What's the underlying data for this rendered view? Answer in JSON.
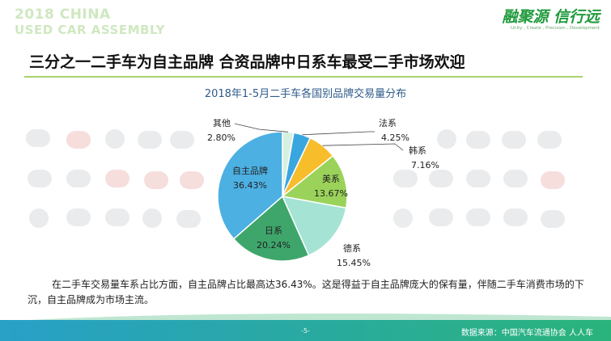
{
  "header": {
    "watermark_line1": "2018 CHINA",
    "watermark_line2": "USED CAR ASSEMBLY",
    "brand_logo": "融聚源 信行远",
    "brand_tagline": "Unity , Create , Precision , Development"
  },
  "page_title": "三分之一二手车为自主品牌  合资品牌中日系车最受二手市场欢迎",
  "chart_data": {
    "type": "pie",
    "title": "2018年1-5月二手车各国别品牌交易量分布",
    "slices": [
      {
        "name": "其他",
        "value": 2.8,
        "label": "2.80%",
        "color": "#d6f0e2"
      },
      {
        "name": "法系",
        "value": 4.25,
        "label": "4.25%",
        "color": "#3aa6e0"
      },
      {
        "name": "韩系",
        "value": 7.16,
        "label": "7.16%",
        "color": "#f7bd2a"
      },
      {
        "name": "美系",
        "value": 13.67,
        "label": "13.67%",
        "color": "#9bd35a"
      },
      {
        "name": "德系",
        "value": 15.45,
        "label": "15.45%",
        "color": "#a5e4d4"
      },
      {
        "name": "日系",
        "value": 20.24,
        "label": "20.24%",
        "color": "#3ea66b"
      },
      {
        "name": "自主品牌",
        "value": 36.43,
        "label": "36.43%",
        "color": "#4cb0e2"
      }
    ]
  },
  "body_text": "在二手车交易量车系占比方面，自主品牌占比最高达36.43%。这是得益于自主品牌庞大的保有量，伴随二手车消费市场的下沉，自主品牌成为市场主流。",
  "footer": {
    "page_number": "-5-",
    "source": "数据来源：中国汽车流通协会    人人车"
  }
}
